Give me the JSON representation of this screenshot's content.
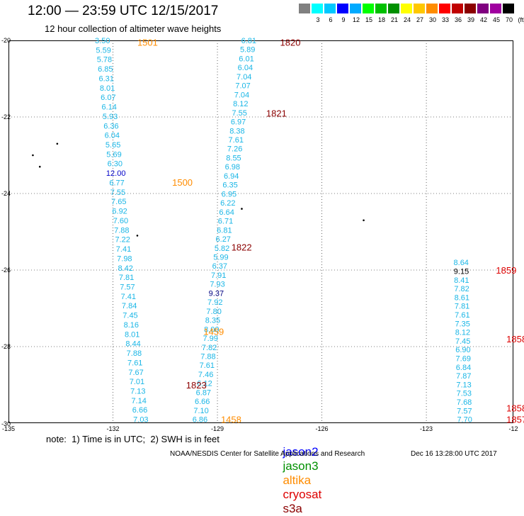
{
  "header": {
    "title": "12:00 — 23:59 UTC 12/15/2017",
    "subtitle": "12 hour collection of altimeter wave heights"
  },
  "scale": {
    "colors": [
      "#808080",
      "#00ffff",
      "#00c8ff",
      "#0000ff",
      "#00aaff",
      "#00ff00",
      "#00c000",
      "#009000",
      "#ffff00",
      "#ffc800",
      "#ff8c00",
      "#ff0000",
      "#c00000",
      "#8b0000",
      "#800080",
      "#a000a0",
      "#000000"
    ],
    "labels": [
      "3",
      "6",
      "9",
      "12",
      "15",
      "18",
      "21",
      "24",
      "27",
      "30",
      "33",
      "36",
      "39",
      "42",
      "45",
      "70",
      "(ft)"
    ]
  },
  "axes": {
    "y_ticks": [
      "-20",
      "-22",
      "-24",
      "-26",
      "-28",
      "-30"
    ],
    "x_ticks": [
      "-135",
      "-132",
      "-129",
      "-126",
      "-123",
      "-12"
    ]
  },
  "tracks": [
    {
      "id": "t1",
      "color": "#1ab6e6",
      "start_lat": -20.0,
      "end_lat": -29.9,
      "start_lon": -132.3,
      "end_lon": -131.2,
      "values": [
        "3.50",
        "5.59",
        "5.78",
        "6.85",
        "6.31",
        "8.01",
        "6.07",
        "6.14",
        "5.93",
        "6.36",
        "6.04",
        "5.65",
        "5.69",
        "6.30",
        "12.00",
        "6.77",
        "7.55",
        "7.65",
        "6.92",
        "7.60",
        "7.88",
        "7.22",
        "7.41",
        "7.98",
        "8.42",
        "7.81",
        "7.57",
        "7.41",
        "7.84",
        "7.45",
        "8.16",
        "8.01",
        "8.44",
        "7.88",
        "7.61",
        "7.67",
        "7.01",
        "7.13",
        "7.14",
        "6.66",
        "7.03"
      ]
    },
    {
      "id": "t2",
      "color": "#1ab6e6",
      "start_lat": -29.9,
      "end_lat": -20.0,
      "start_lon": -129.5,
      "end_lon": -128.1,
      "values": [
        "6.86",
        "7.10",
        "6.66",
        "6.87",
        "6.12",
        "7.46",
        "7.61",
        "7.88",
        "7.82",
        "7.99",
        "8.00",
        "8.35",
        "7.80",
        "7.92",
        "9.37",
        "7.93",
        "7.91",
        "6.37",
        "5.99",
        "5.82",
        "6.27",
        "6.81",
        "6.71",
        "6.64",
        "6.22",
        "6.95",
        "6.35",
        "6.94",
        "6.98",
        "8.55",
        "7.26",
        "7.61",
        "8.38",
        "6.97",
        "7.55",
        "8.12",
        "7.04",
        "7.07",
        "7.04",
        "6.04",
        "6.01",
        "5.89",
        "6.81"
      ]
    },
    {
      "id": "t3",
      "color": "#1ab6e6",
      "start_lat": -25.8,
      "end_lat": -29.9,
      "start_lon": -122.0,
      "end_lon": -121.9,
      "values": [
        "8.64",
        "9.15",
        "8.41",
        "7.82",
        "8.61",
        "7.81",
        "7.61",
        "7.35",
        "8.12",
        "7.45",
        "6.90",
        "7.69",
        "6.84",
        "7.87",
        "7.13",
        "7.53",
        "7.68",
        "7.57",
        "7.70"
      ]
    }
  ],
  "highlights": [
    {
      "track": "t1",
      "index": 14,
      "color": "#0000c8"
    },
    {
      "track": "t2",
      "index": 14,
      "color": "#000080"
    },
    {
      "track": "t3",
      "index": 1,
      "color": "#000000"
    }
  ],
  "times": [
    {
      "label": "1501",
      "lat": -20.05,
      "lon": -131.3,
      "color": "#ff8c00"
    },
    {
      "label": "1820",
      "lat": -20.05,
      "lon": -127.2,
      "color": "#8b0000"
    },
    {
      "label": "1821",
      "lat": -21.9,
      "lon": -127.6,
      "color": "#8b0000"
    },
    {
      "label": "1500",
      "lat": -23.7,
      "lon": -130.3,
      "color": "#ff8c00"
    },
    {
      "label": "1822",
      "lat": -25.4,
      "lon": -128.6,
      "color": "#8b0000"
    },
    {
      "label": "1859",
      "lat": -26.0,
      "lon": -121.0,
      "color": "#dd0000"
    },
    {
      "label": "1459",
      "lat": -27.6,
      "lon": -129.4,
      "color": "#ff8c00"
    },
    {
      "label": "1858",
      "lat": -27.8,
      "lon": -120.7,
      "color": "#dd0000"
    },
    {
      "label": "1823",
      "lat": -29.0,
      "lon": -129.9,
      "color": "#8b0000"
    },
    {
      "label": "1858",
      "lat": -29.6,
      "lon": -120.7,
      "color": "#dd0000"
    },
    {
      "label": "1857",
      "lat": -29.9,
      "lon": -120.7,
      "color": "#dd0000"
    },
    {
      "label": "1458",
      "lat": -29.9,
      "lon": -128.9,
      "color": "#ff8c00"
    }
  ],
  "islands": [
    {
      "lat": -22.7,
      "lon": -133.6
    },
    {
      "lat": -23.0,
      "lon": -134.3
    },
    {
      "lat": -23.3,
      "lon": -134.1
    },
    {
      "lat": -24.4,
      "lon": -128.3
    },
    {
      "lat": -24.7,
      "lon": -124.8
    },
    {
      "lat": -25.1,
      "lon": -131.3
    }
  ],
  "note": "note:  1) Time is in UTC;  2) SWH is in feet",
  "satellites": [
    {
      "name": "jason2",
      "color": "#0000ff"
    },
    {
      "name": "jason3",
      "color": "#009000"
    },
    {
      "name": "altika",
      "color": "#ff8c00"
    },
    {
      "name": "cryosat",
      "color": "#dd0000"
    },
    {
      "name": "s3a",
      "color": "#8b0000"
    }
  ],
  "footer": {
    "org": "NOAA/NESDIS Center for Satellite Applications and Research",
    "timestamp": "Dec 16 13:28:00 UTC 2017"
  }
}
